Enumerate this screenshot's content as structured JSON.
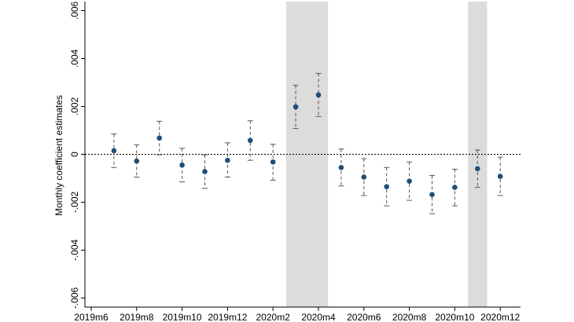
{
  "chart_data": {
    "type": "scatter",
    "title": "",
    "xlabel": "",
    "ylabel": "Monthly coefficient estimates",
    "x_categories": [
      "2019m6",
      "2019m7",
      "2019m8",
      "2019m9",
      "2019m10",
      "2019m11",
      "2019m12",
      "2020m1",
      "2020m2",
      "2020m3",
      "2020m4",
      "2020m5",
      "2020m6",
      "2020m7",
      "2020m8",
      "2020m9",
      "2020m10",
      "2020m11",
      "2020m12"
    ],
    "x_tick_labels": [
      "2019m6",
      "2019m8",
      "2019m10",
      "2019m12",
      "2020m2",
      "2020m4",
      "2020m6",
      "2020m8",
      "2020m10",
      "2020m12"
    ],
    "ylim": [
      -0.006,
      0.006
    ],
    "y_ticks": [
      -0.006,
      -0.004,
      -0.002,
      0,
      0.002,
      0.004,
      0.006
    ],
    "y_tick_labels": [
      "-.006",
      "-.004",
      "-.002",
      "0",
      ".002",
      ".004",
      ".006"
    ],
    "reference_line": 0,
    "shaded_periods": [
      {
        "from": "2020m3",
        "to": "2020m4"
      },
      {
        "from": "2020m11",
        "to": "2020m11"
      }
    ],
    "series": [
      {
        "name": "Monthly coefficient estimates",
        "points": [
          {
            "x": "2019m7",
            "estimate": 0.00015,
            "ci_low": -0.00055,
            "ci_high": 0.00085
          },
          {
            "x": "2019m8",
            "estimate": -0.00028,
            "ci_low": -0.00095,
            "ci_high": 0.0004
          },
          {
            "x": "2019m9",
            "estimate": 0.00068,
            "ci_low": -2e-05,
            "ci_high": 0.00138
          },
          {
            "x": "2019m10",
            "estimate": -0.00045,
            "ci_low": -0.00115,
            "ci_high": 0.00025
          },
          {
            "x": "2019m11",
            "estimate": -0.00072,
            "ci_low": -0.00142,
            "ci_high": -2e-05
          },
          {
            "x": "2019m12",
            "estimate": -0.00025,
            "ci_low": -0.00095,
            "ci_high": 0.00048
          },
          {
            "x": "2020m1",
            "estimate": 0.00058,
            "ci_low": -0.00025,
            "ci_high": 0.0014
          },
          {
            "x": "2020m2",
            "estimate": -0.00032,
            "ci_low": -0.00108,
            "ci_high": 0.00042
          },
          {
            "x": "2020m3",
            "estimate": 0.00198,
            "ci_low": 0.00108,
            "ci_high": 0.00288
          },
          {
            "x": "2020m4",
            "estimate": 0.00248,
            "ci_low": 0.00158,
            "ci_high": 0.00338
          },
          {
            "x": "2020m5",
            "estimate": -0.00055,
            "ci_low": -0.00132,
            "ci_high": 0.00022
          },
          {
            "x": "2020m6",
            "estimate": -0.00095,
            "ci_low": -0.00172,
            "ci_high": -0.00018
          },
          {
            "x": "2020m7",
            "estimate": -0.00135,
            "ci_low": -0.00215,
            "ci_high": -0.00055
          },
          {
            "x": "2020m8",
            "estimate": -0.00112,
            "ci_low": -0.00192,
            "ci_high": -0.00032
          },
          {
            "x": "2020m9",
            "estimate": -0.00168,
            "ci_low": -0.00248,
            "ci_high": -0.00088
          },
          {
            "x": "2020m10",
            "estimate": -0.00138,
            "ci_low": -0.00215,
            "ci_high": -0.00062
          },
          {
            "x": "2020m11",
            "estimate": -0.0006,
            "ci_low": -0.00138,
            "ci_high": 0.00018
          },
          {
            "x": "2020m12",
            "estimate": -0.00092,
            "ci_low": -0.00172,
            "ci_high": -0.00012
          }
        ]
      }
    ],
    "colors": {
      "point": "#1f4e79",
      "ci": "#555555",
      "shade": "#dcdcdc",
      "axis": "#000000"
    }
  }
}
